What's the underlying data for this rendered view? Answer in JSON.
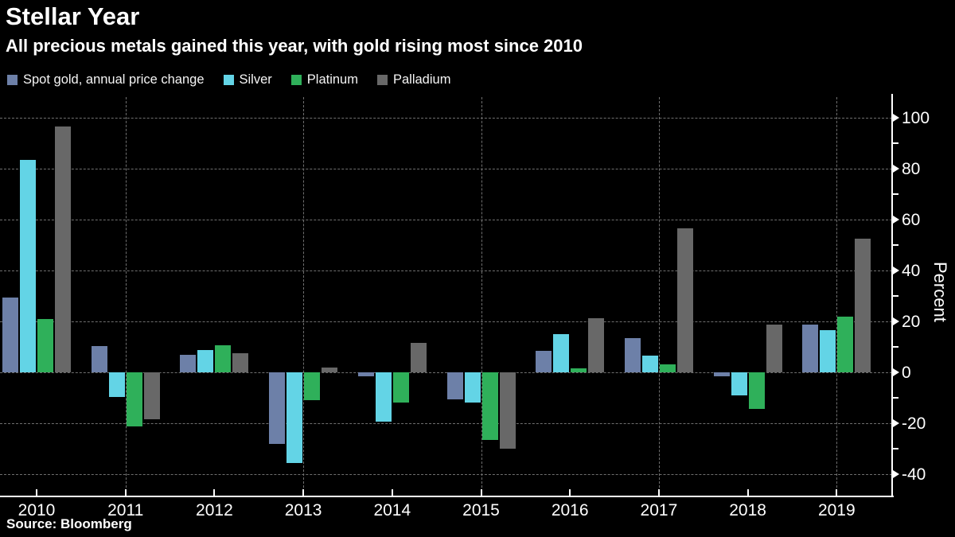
{
  "header": {
    "title": "Stellar Year",
    "subtitle": "All precious metals gained this year, with gold rising most since 2010"
  },
  "source": "Source: Bloomberg",
  "chart_data": {
    "type": "bar",
    "title": "Stellar Year",
    "subtitle": "All precious metals gained this year, with gold rising most since 2010",
    "categories": [
      "2010",
      "2011",
      "2012",
      "2013",
      "2014",
      "2015",
      "2016",
      "2017",
      "2018",
      "2019"
    ],
    "series": [
      {
        "name": "Spot gold, annual price change",
        "color": "#6d80a8",
        "values": [
          29.5,
          10.2,
          7.0,
          -28.2,
          -1.5,
          -10.5,
          8.5,
          13.5,
          -1.5,
          18.8
        ]
      },
      {
        "name": "Silver",
        "color": "#63d4e6",
        "values": [
          83.5,
          -9.8,
          8.8,
          -35.5,
          -19.5,
          -11.8,
          15.0,
          6.5,
          -9.0,
          16.5
        ]
      },
      {
        "name": "Platinum",
        "color": "#2fb05a",
        "values": [
          21.0,
          -21.2,
          10.5,
          -11.0,
          -12.0,
          -26.5,
          1.5,
          3.0,
          -14.5,
          22.0
        ]
      },
      {
        "name": "Palladium",
        "color": "#686868",
        "values": [
          96.5,
          -18.5,
          7.5,
          2.0,
          11.5,
          -30.0,
          21.2,
          56.5,
          18.6,
          52.5
        ]
      }
    ],
    "xlabel": "",
    "ylabel": "Percent",
    "ylim": [
      -48,
      108
    ],
    "yticks_major": [
      100,
      80,
      60,
      40,
      20,
      0,
      -20,
      -40
    ],
    "yticks_minor": [
      90,
      70,
      50,
      30,
      10,
      -10,
      -30
    ],
    "grid_vertical_categories": [
      "2011",
      "2013",
      "2015",
      "2017",
      "2019"
    ],
    "grid": true,
    "legend_position": "top",
    "background_color": "#000000",
    "axis_color": "#ffffff",
    "grid_color": "#6f6f6f"
  }
}
